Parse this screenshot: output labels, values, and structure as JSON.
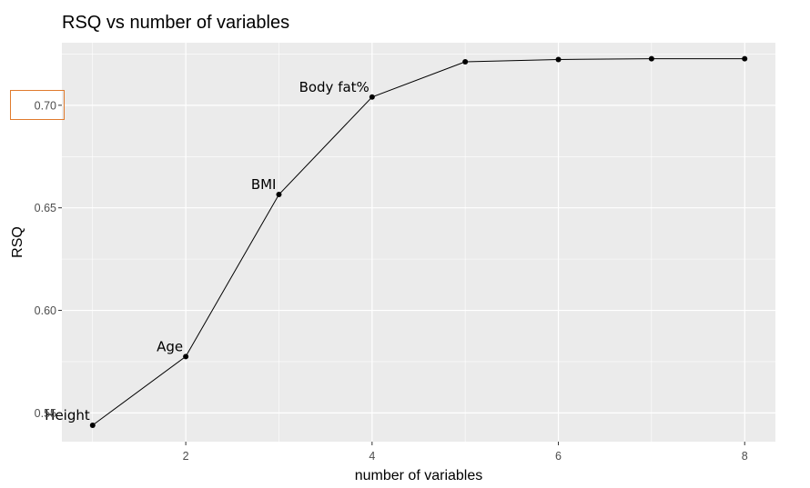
{
  "chart_data": {
    "type": "line",
    "title": "RSQ vs number of variables",
    "xlabel": "number of variables",
    "ylabel": "RSQ",
    "x": [
      1,
      2,
      3,
      4,
      5,
      6,
      7,
      8
    ],
    "y": [
      0.544,
      0.5775,
      0.6565,
      0.704,
      0.7212,
      0.7223,
      0.7227,
      0.7227
    ],
    "xlim": [
      0.67,
      8.33
    ],
    "ylim": [
      0.536,
      0.7305
    ],
    "xticks": [
      2,
      4,
      6,
      8
    ],
    "xtick_labels": [
      "2",
      "4",
      "6",
      "8"
    ],
    "yticks": [
      0.55,
      0.6,
      0.65,
      0.7
    ],
    "ytick_labels": [
      "0.55",
      "0.60",
      "0.65",
      "0.70"
    ],
    "point_labels": [
      {
        "x": 1,
        "text": "Height"
      },
      {
        "x": 2,
        "text": "Age"
      },
      {
        "x": 3,
        "text": "BMI"
      },
      {
        "x": 4,
        "text": "Body fat%"
      }
    ],
    "highlighted_tick": "0.70",
    "grid": true,
    "colors": {
      "panel": "#ebebeb",
      "grid_major": "#ffffff",
      "line": "#000000",
      "highlight": "#e07b2e"
    }
  }
}
